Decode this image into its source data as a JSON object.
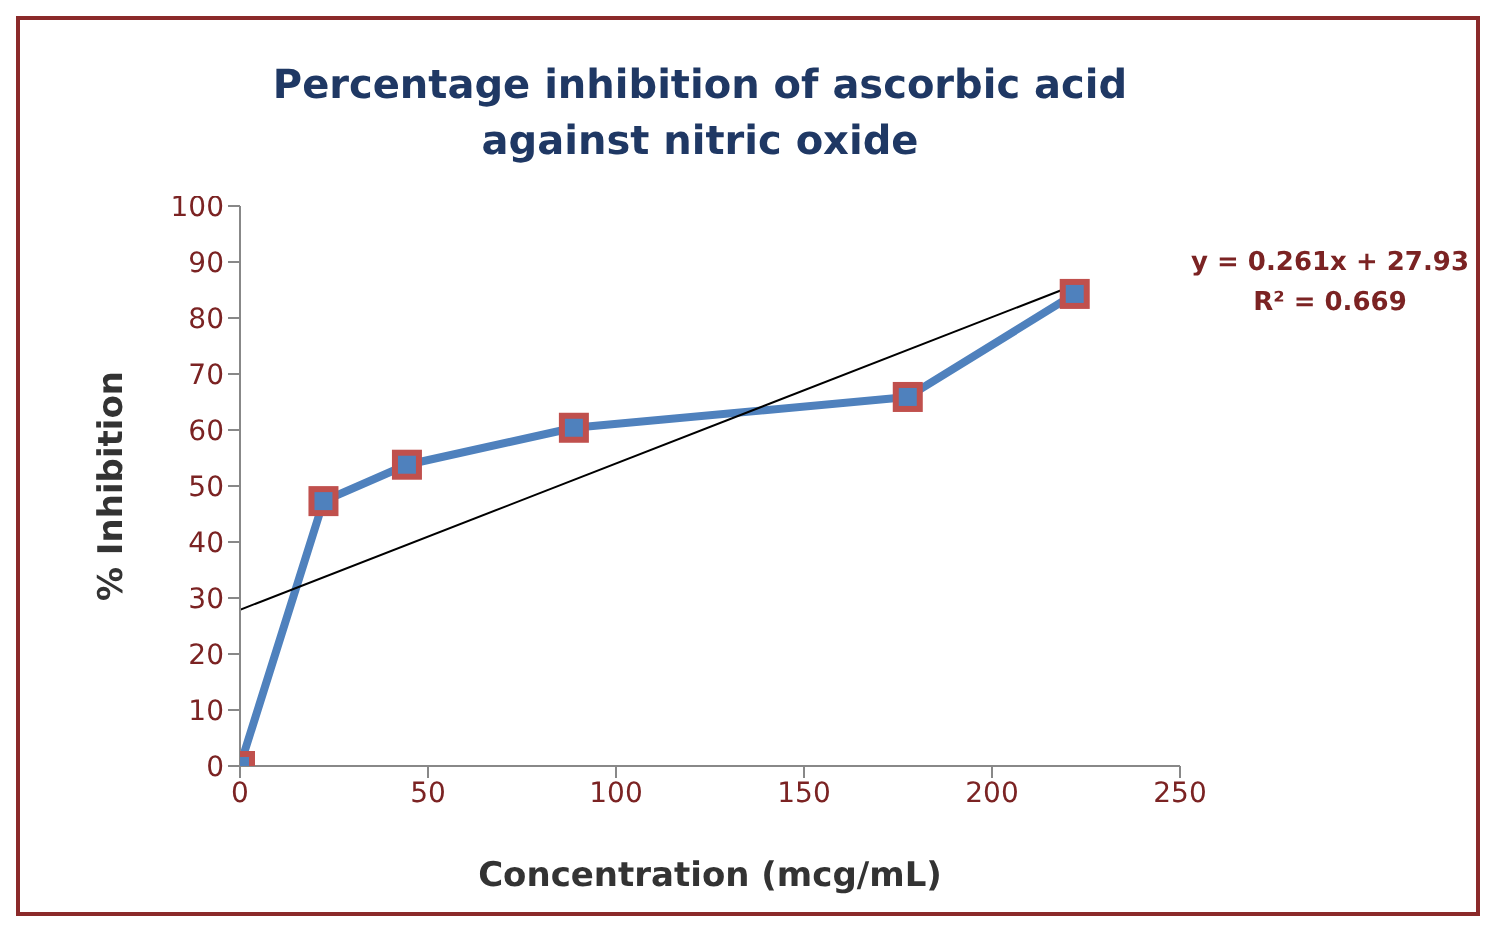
{
  "chart_data": {
    "type": "line",
    "title": "Percentage inhibition of ascorbic acid against nitric oxide",
    "xlabel": "Concentration (mcg/mL)",
    "ylabel": "% Inhibition",
    "x": [
      0,
      22.2,
      44.4,
      88.8,
      177.6,
      222
    ],
    "series": [
      {
        "color": "#4f81bd",
        "values": [
          0,
          47.3,
          53.8,
          60.4,
          65.9,
          84.3
        ]
      },
      {
        "color": "#000000",
        "marker": "none",
        "x": [
          0,
          222
        ],
        "values": [
          27.9,
          85.9
        ]
      }
    ],
    "marker": "square",
    "line_style": "solid",
    "grid": false,
    "legend": false,
    "xlim": [
      0,
      250
    ],
    "xticks": [
      0,
      50,
      100,
      150,
      200,
      250
    ],
    "ylim": [
      0,
      100
    ],
    "yticks": [
      0,
      10,
      20,
      30,
      40,
      50,
      60,
      70,
      80,
      90,
      100
    ],
    "annotations": [
      "y = 0.261x + 27.93",
      "R² = 0.669"
    ]
  }
}
